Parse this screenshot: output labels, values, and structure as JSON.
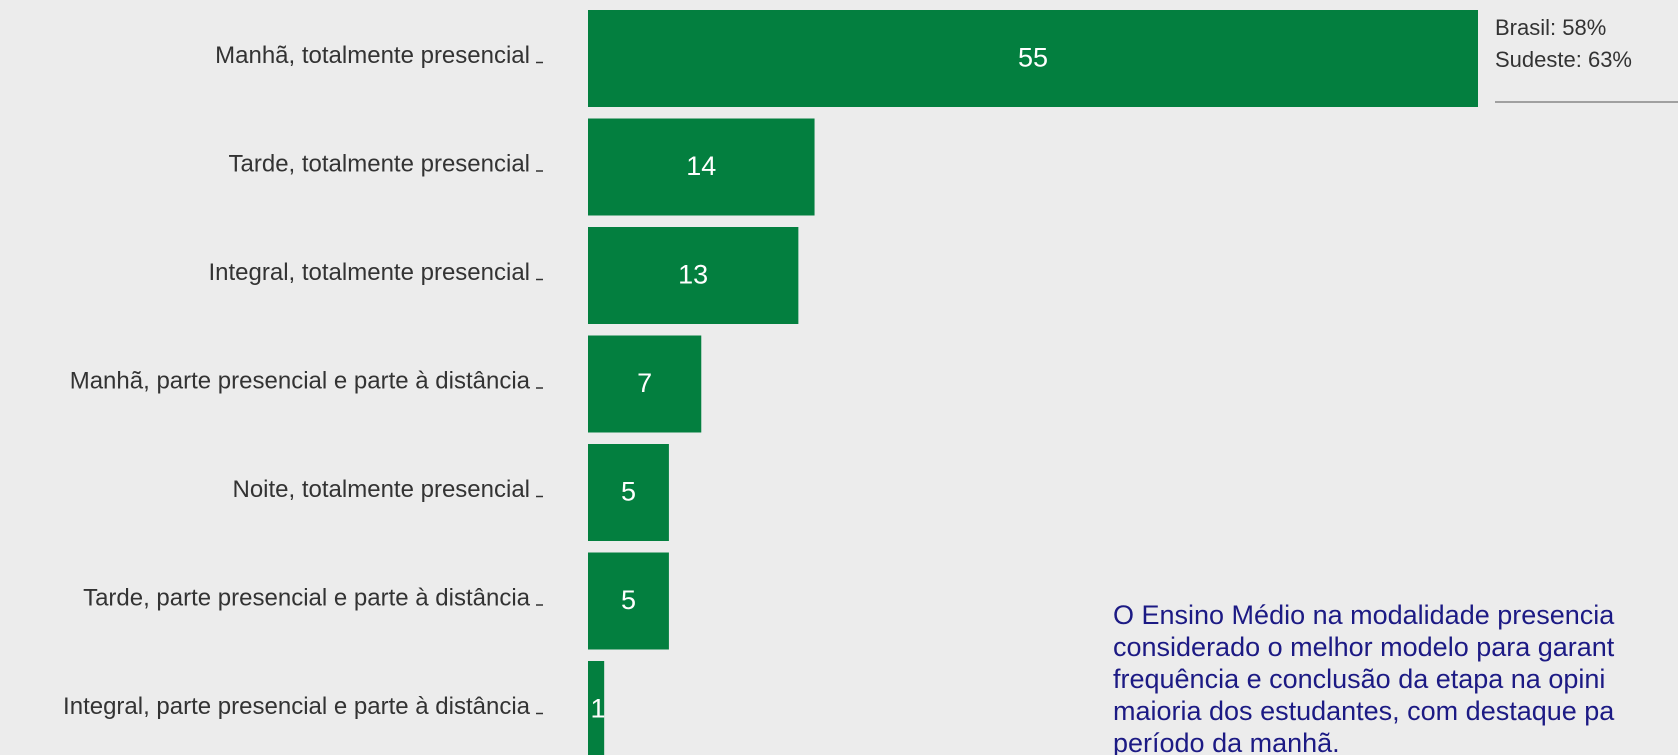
{
  "chart_data": {
    "type": "bar",
    "orientation": "horizontal",
    "categories": [
      "Manhã, totalmente presencial",
      "Tarde, totalmente presencial",
      "Integral, totalmente presencial",
      "Manhã, parte presencial e parte à distância",
      "Noite, totalmente presencial",
      "Tarde, parte presencial e parte à distância",
      "Integral, parte presencial e parte à distância"
    ],
    "values": [
      55,
      14,
      13,
      7,
      5,
      5,
      1
    ],
    "color": "#037f3f",
    "annotation": [
      "Brasil: 58%",
      "Sudeste: 63%"
    ],
    "note": [
      "O Ensino Médio na modalidade presencia",
      "considerado o melhor modelo para garant",
      "frequência e conclusão da etapa na opini",
      "maioria dos estudantes, com destaque pa",
      "período da manhã."
    ]
  }
}
